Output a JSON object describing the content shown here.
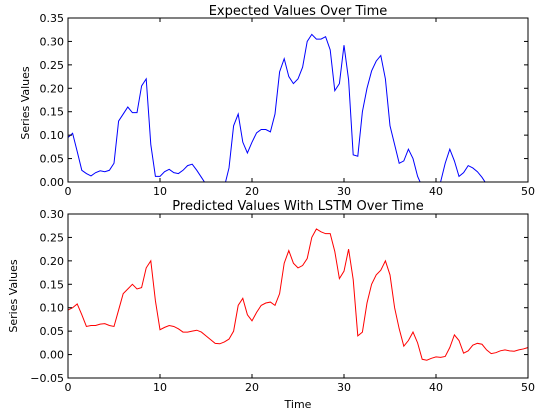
{
  "chart_data": [
    {
      "type": "line",
      "title": "Expected Values Over Time",
      "xlabel": "",
      "ylabel": "Series Values",
      "xlim": [
        0,
        50
      ],
      "ylim": [
        0,
        0.35
      ],
      "xticks": [
        "0",
        "10",
        "20",
        "30",
        "40",
        "50"
      ],
      "yticks": [
        "0.00",
        "0.05",
        "0.10",
        "0.15",
        "0.20",
        "0.25",
        "0.30",
        "0.35"
      ],
      "grid": false,
      "series": [
        {
          "color": "#0000ff",
          "points": [
            [
              0,
              0.095
            ],
            [
              0.5,
              0.104
            ],
            [
              1,
              0.065
            ],
            [
              1.5,
              0.025
            ],
            [
              2,
              0.018
            ],
            [
              2.5,
              0.013
            ],
            [
              3,
              0.02
            ],
            [
              3.5,
              0.024
            ],
            [
              4,
              0.022
            ],
            [
              4.5,
              0.025
            ],
            [
              5,
              0.04
            ],
            [
              5.5,
              0.13
            ],
            [
              6,
              0.145
            ],
            [
              6.5,
              0.16
            ],
            [
              7,
              0.148
            ],
            [
              7.5,
              0.148
            ],
            [
              8,
              0.205
            ],
            [
              8.5,
              0.22
            ],
            [
              9,
              0.08
            ],
            [
              9.5,
              0.012
            ],
            [
              10,
              0.012
            ],
            [
              10.5,
              0.022
            ],
            [
              11,
              0.027
            ],
            [
              11.5,
              0.02
            ],
            [
              12,
              0.018
            ],
            [
              12.5,
              0.025
            ],
            [
              13,
              0.035
            ],
            [
              13.5,
              0.038
            ],
            [
              14,
              0.025
            ],
            [
              14.5,
              0.01
            ],
            [
              15,
              -0.005
            ],
            [
              15.5,
              -0.005
            ],
            [
              16,
              -0.02
            ],
            [
              16.5,
              -0.03
            ],
            [
              17,
              -0.01
            ],
            [
              17.5,
              0.03
            ],
            [
              18,
              0.12
            ],
            [
              18.5,
              0.145
            ],
            [
              19,
              0.085
            ],
            [
              19.5,
              0.062
            ],
            [
              20,
              0.085
            ],
            [
              20.5,
              0.105
            ],
            [
              21,
              0.112
            ],
            [
              21.5,
              0.112
            ],
            [
              22,
              0.107
            ],
            [
              22.5,
              0.145
            ],
            [
              23,
              0.235
            ],
            [
              23.5,
              0.263
            ],
            [
              24,
              0.225
            ],
            [
              24.5,
              0.21
            ],
            [
              25,
              0.22
            ],
            [
              25.5,
              0.245
            ],
            [
              26,
              0.3
            ],
            [
              26.5,
              0.315
            ],
            [
              27,
              0.305
            ],
            [
              27.5,
              0.305
            ],
            [
              28,
              0.31
            ],
            [
              28.5,
              0.282
            ],
            [
              29,
              0.195
            ],
            [
              29.5,
              0.21
            ],
            [
              30,
              0.292
            ],
            [
              30.5,
              0.218
            ],
            [
              31,
              0.058
            ],
            [
              31.5,
              0.055
            ],
            [
              32,
              0.15
            ],
            [
              32.5,
              0.2
            ],
            [
              33,
              0.237
            ],
            [
              33.5,
              0.258
            ],
            [
              34,
              0.27
            ],
            [
              34.5,
              0.22
            ],
            [
              35,
              0.12
            ],
            [
              35.5,
              0.08
            ],
            [
              36,
              0.04
            ],
            [
              36.5,
              0.045
            ],
            [
              37,
              0.07
            ],
            [
              37.5,
              0.05
            ],
            [
              38,
              0.012
            ],
            [
              38.5,
              -0.01
            ],
            [
              39,
              -0.01
            ],
            [
              39.5,
              -0.02
            ],
            [
              40,
              -0.015
            ],
            [
              40.5,
              0.0
            ],
            [
              41,
              0.04
            ],
            [
              41.5,
              0.07
            ],
            [
              42,
              0.045
            ],
            [
              42.5,
              0.012
            ],
            [
              43,
              0.02
            ],
            [
              43.5,
              0.035
            ],
            [
              44,
              0.03
            ],
            [
              44.5,
              0.022
            ],
            [
              45,
              0.01
            ],
            [
              45.5,
              -0.005
            ]
          ]
        }
      ]
    },
    {
      "type": "line",
      "title": "Predicted Values With LSTM Over Time",
      "xlabel": "Time",
      "ylabel": "Series Values",
      "xlim": [
        0,
        50
      ],
      "ylim": [
        -0.05,
        0.3
      ],
      "xticks": [
        "0",
        "10",
        "20",
        "30",
        "40",
        "50"
      ],
      "yticks": [
        "−0.05",
        "0.00",
        "0.05",
        "0.10",
        "0.15",
        "0.20",
        "0.25",
        "0.30"
      ],
      "grid": false,
      "series": [
        {
          "color": "#ff0000",
          "points": [
            [
              0,
              0.095
            ],
            [
              0.5,
              0.1
            ],
            [
              1,
              0.108
            ],
            [
              1.5,
              0.085
            ],
            [
              2,
              0.06
            ],
            [
              2.5,
              0.062
            ],
            [
              3,
              0.062
            ],
            [
              3.5,
              0.065
            ],
            [
              4,
              0.066
            ],
            [
              4.5,
              0.062
            ],
            [
              5,
              0.06
            ],
            [
              5.5,
              0.095
            ],
            [
              6,
              0.13
            ],
            [
              6.5,
              0.14
            ],
            [
              7,
              0.15
            ],
            [
              7.5,
              0.14
            ],
            [
              8,
              0.143
            ],
            [
              8.5,
              0.185
            ],
            [
              9,
              0.2
            ],
            [
              9.5,
              0.115
            ],
            [
              10,
              0.053
            ],
            [
              10.5,
              0.058
            ],
            [
              11,
              0.062
            ],
            [
              11.5,
              0.06
            ],
            [
              12,
              0.055
            ],
            [
              12.5,
              0.048
            ],
            [
              13,
              0.048
            ],
            [
              13.5,
              0.05
            ],
            [
              14,
              0.052
            ],
            [
              14.5,
              0.048
            ],
            [
              15,
              0.04
            ],
            [
              15.5,
              0.032
            ],
            [
              16,
              0.024
            ],
            [
              16.5,
              0.023
            ],
            [
              17,
              0.027
            ],
            [
              17.5,
              0.033
            ],
            [
              18,
              0.05
            ],
            [
              18.5,
              0.105
            ],
            [
              19,
              0.12
            ],
            [
              19.5,
              0.085
            ],
            [
              20,
              0.072
            ],
            [
              20.5,
              0.09
            ],
            [
              21,
              0.105
            ],
            [
              21.5,
              0.11
            ],
            [
              22,
              0.112
            ],
            [
              22.5,
              0.105
            ],
            [
              23,
              0.13
            ],
            [
              23.5,
              0.195
            ],
            [
              24,
              0.222
            ],
            [
              24.5,
              0.195
            ],
            [
              25,
              0.185
            ],
            [
              25.5,
              0.19
            ],
            [
              26,
              0.205
            ],
            [
              26.5,
              0.25
            ],
            [
              27,
              0.268
            ],
            [
              27.5,
              0.262
            ],
            [
              28,
              0.258
            ],
            [
              28.5,
              0.258
            ],
            [
              29,
              0.22
            ],
            [
              29.5,
              0.162
            ],
            [
              30,
              0.178
            ],
            [
              30.5,
              0.225
            ],
            [
              31,
              0.16
            ],
            [
              31.5,
              0.04
            ],
            [
              32,
              0.048
            ],
            [
              32.5,
              0.11
            ],
            [
              33,
              0.15
            ],
            [
              33.5,
              0.17
            ],
            [
              34,
              0.18
            ],
            [
              34.5,
              0.2
            ],
            [
              35,
              0.17
            ],
            [
              35.5,
              0.1
            ],
            [
              36,
              0.055
            ],
            [
              36.5,
              0.018
            ],
            [
              37,
              0.03
            ],
            [
              37.5,
              0.048
            ],
            [
              38,
              0.025
            ],
            [
              38.5,
              -0.01
            ],
            [
              39,
              -0.012
            ],
            [
              39.5,
              -0.008
            ],
            [
              40,
              -0.005
            ],
            [
              40.5,
              -0.006
            ],
            [
              41,
              -0.004
            ],
            [
              41.5,
              0.015
            ],
            [
              42,
              0.042
            ],
            [
              42.5,
              0.03
            ],
            [
              43,
              0.003
            ],
            [
              43.5,
              0.008
            ],
            [
              44,
              0.02
            ],
            [
              44.5,
              0.024
            ],
            [
              45,
              0.022
            ],
            [
              45.5,
              0.01
            ],
            [
              46,
              0.002
            ],
            [
              46.5,
              0.004
            ],
            [
              47,
              0.008
            ],
            [
              47.5,
              0.01
            ],
            [
              48,
              0.008
            ],
            [
              48.5,
              0.007
            ],
            [
              49,
              0.01
            ],
            [
              49.5,
              0.012
            ],
            [
              50,
              0.015
            ]
          ]
        }
      ]
    }
  ]
}
